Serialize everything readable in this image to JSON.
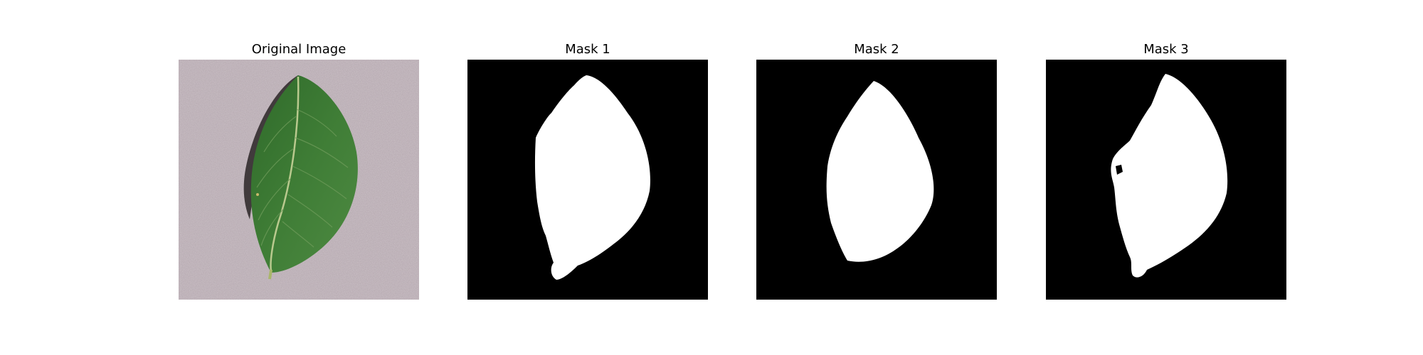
{
  "panels": [
    {
      "id": "original",
      "title": "Original Image"
    },
    {
      "id": "mask1",
      "title": "Mask 1"
    },
    {
      "id": "mask2",
      "title": "Mask 2"
    },
    {
      "id": "mask3",
      "title": "Mask 3"
    }
  ],
  "colors": {
    "background": "#ffffff",
    "mask_background": "#000000",
    "mask_foreground": "#ffffff",
    "leaf_green": "#3f7a35",
    "surface": "#c8bcc2"
  }
}
